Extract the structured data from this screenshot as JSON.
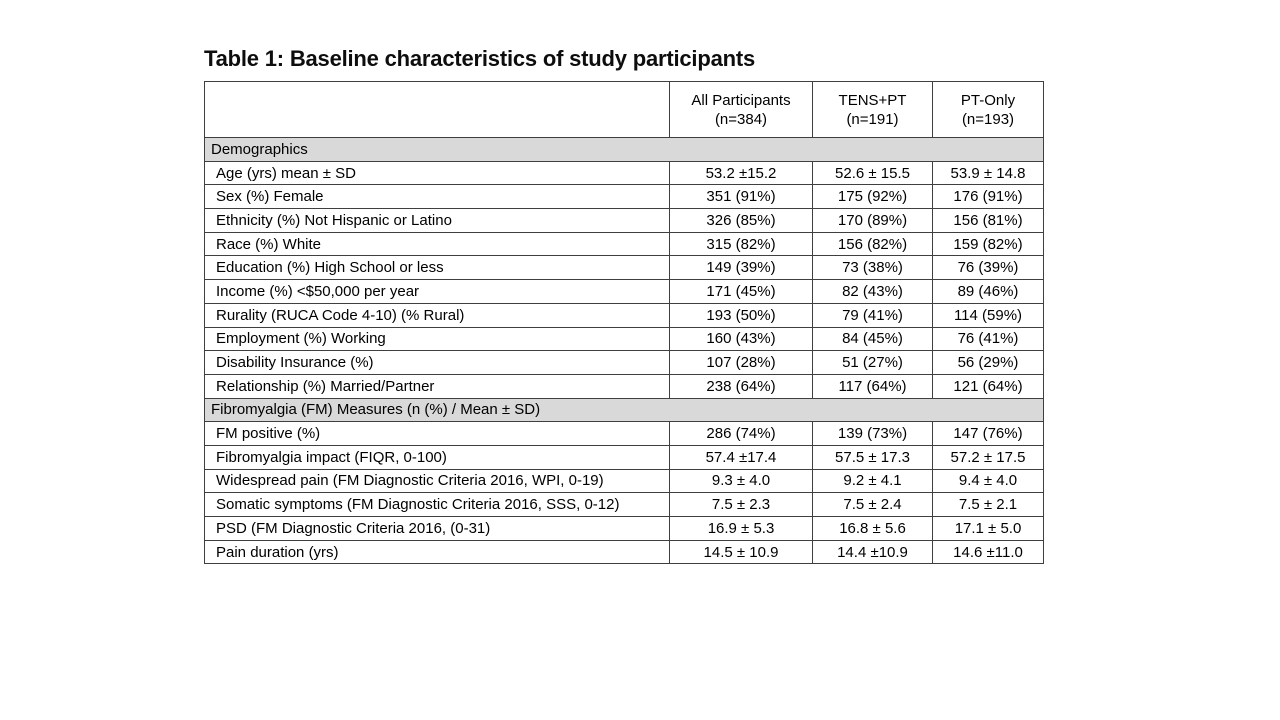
{
  "title": "Table 1: Baseline characteristics of study participants",
  "colors": {
    "border": "#3f3f3f",
    "section_band": "#d9d9d9",
    "text": "#000000",
    "background": "#ffffff"
  },
  "table": {
    "columns": [
      {
        "label": "All Participants",
        "sub": "(n=384)"
      },
      {
        "label": "TENS+PT",
        "sub": "(n=191)"
      },
      {
        "label": "PT-Only",
        "sub": "(n=193)"
      }
    ],
    "sections": [
      {
        "header": "Demographics",
        "rows": [
          {
            "label": "Age (yrs) mean ± SD",
            "values": [
              "53.2 ±15.2",
              "52.6 ± 15.5",
              "53.9 ± 14.8"
            ]
          },
          {
            "label": "Sex (%) Female",
            "values": [
              "351 (91%)",
              "175 (92%)",
              "176 (91%)"
            ]
          },
          {
            "label": "Ethnicity (%) Not Hispanic or Latino",
            "values": [
              "326 (85%)",
              "170 (89%)",
              "156 (81%)"
            ]
          },
          {
            "label": "Race (%) White",
            "values": [
              "315 (82%)",
              "156 (82%)",
              "159 (82%)"
            ]
          },
          {
            "label": "Education (%) High School or less",
            "values": [
              "149 (39%)",
              "73 (38%)",
              "76 (39%)"
            ]
          },
          {
            "label": "Income (%) <$50,000 per year",
            "values": [
              "171 (45%)",
              "82 (43%)",
              "89 (46%)"
            ]
          },
          {
            "label": "Rurality (RUCA Code 4-10) (% Rural)",
            "values": [
              "193 (50%)",
              "79 (41%)",
              "114 (59%)"
            ]
          },
          {
            "label": "Employment (%) Working",
            "values": [
              "160 (43%)",
              "84 (45%)",
              "76 (41%)"
            ]
          },
          {
            "label": "Disability Insurance (%)",
            "values": [
              "107 (28%)",
              "51 (27%)",
              "56 (29%)"
            ]
          },
          {
            "label": "Relationship (%) Married/Partner",
            "values": [
              "238 (64%)",
              "117 (64%)",
              "121 (64%)"
            ]
          }
        ]
      },
      {
        "header": "Fibromyalgia (FM) Measures (n (%) / Mean ± SD)",
        "rows": [
          {
            "label": "FM positive (%)",
            "values": [
              "286 (74%)",
              "139 (73%)",
              "147 (76%)"
            ]
          },
          {
            "label": "Fibromyalgia impact (FIQR, 0-100)",
            "values": [
              "57.4 ±17.4",
              "57.5 ± 17.3",
              "57.2 ± 17.5"
            ]
          },
          {
            "label": "Widespread pain (FM Diagnostic Criteria 2016, WPI, 0-19)",
            "values": [
              "9.3 ± 4.0",
              "9.2 ± 4.1",
              "9.4 ± 4.0"
            ]
          },
          {
            "label": "Somatic symptoms (FM Diagnostic Criteria 2016, SSS, 0-12)",
            "values": [
              "7.5 ± 2.3",
              "7.5 ± 2.4",
              "7.5 ± 2.1"
            ]
          },
          {
            "label": "PSD (FM Diagnostic Criteria 2016, (0-31)",
            "values": [
              "16.9 ± 5.3",
              "16.8 ± 5.6",
              "17.1 ± 5.0"
            ]
          },
          {
            "label": "Pain duration (yrs)",
            "values": [
              "14.5 ± 10.9",
              "14.4 ±10.9",
              "14.6 ±11.0"
            ]
          }
        ]
      }
    ]
  }
}
